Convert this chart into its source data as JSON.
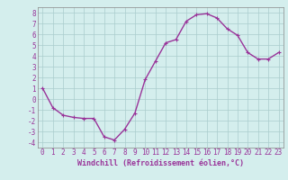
{
  "x": [
    0,
    1,
    2,
    3,
    4,
    5,
    6,
    7,
    8,
    9,
    10,
    11,
    12,
    13,
    14,
    15,
    16,
    17,
    18,
    19,
    20,
    21,
    22,
    23
  ],
  "y": [
    1.0,
    -0.8,
    -1.5,
    -1.7,
    -1.8,
    -1.8,
    -3.5,
    -3.8,
    -2.8,
    -1.3,
    1.8,
    3.5,
    5.2,
    5.5,
    7.2,
    7.8,
    7.9,
    7.5,
    6.5,
    5.9,
    4.3,
    3.7,
    3.7,
    4.3
  ],
  "line_color": "#993399",
  "marker": "+",
  "marker_size": 3,
  "bg_color": "#d4eeed",
  "grid_color": "#aacccc",
  "xlabel": "Windchill (Refroidissement éolien,°C)",
  "xlabel_fontsize": 6,
  "xtick_labels": [
    "0",
    "1",
    "2",
    "3",
    "4",
    "5",
    "6",
    "7",
    "8",
    "9",
    "10",
    "11",
    "12",
    "13",
    "14",
    "15",
    "16",
    "17",
    "18",
    "19",
    "20",
    "21",
    "22",
    "23"
  ],
  "ylim": [
    -4.5,
    8.5
  ],
  "xlim": [
    -0.5,
    23.5
  ],
  "tick_fontsize": 5.5,
  "linewidth": 1.0
}
